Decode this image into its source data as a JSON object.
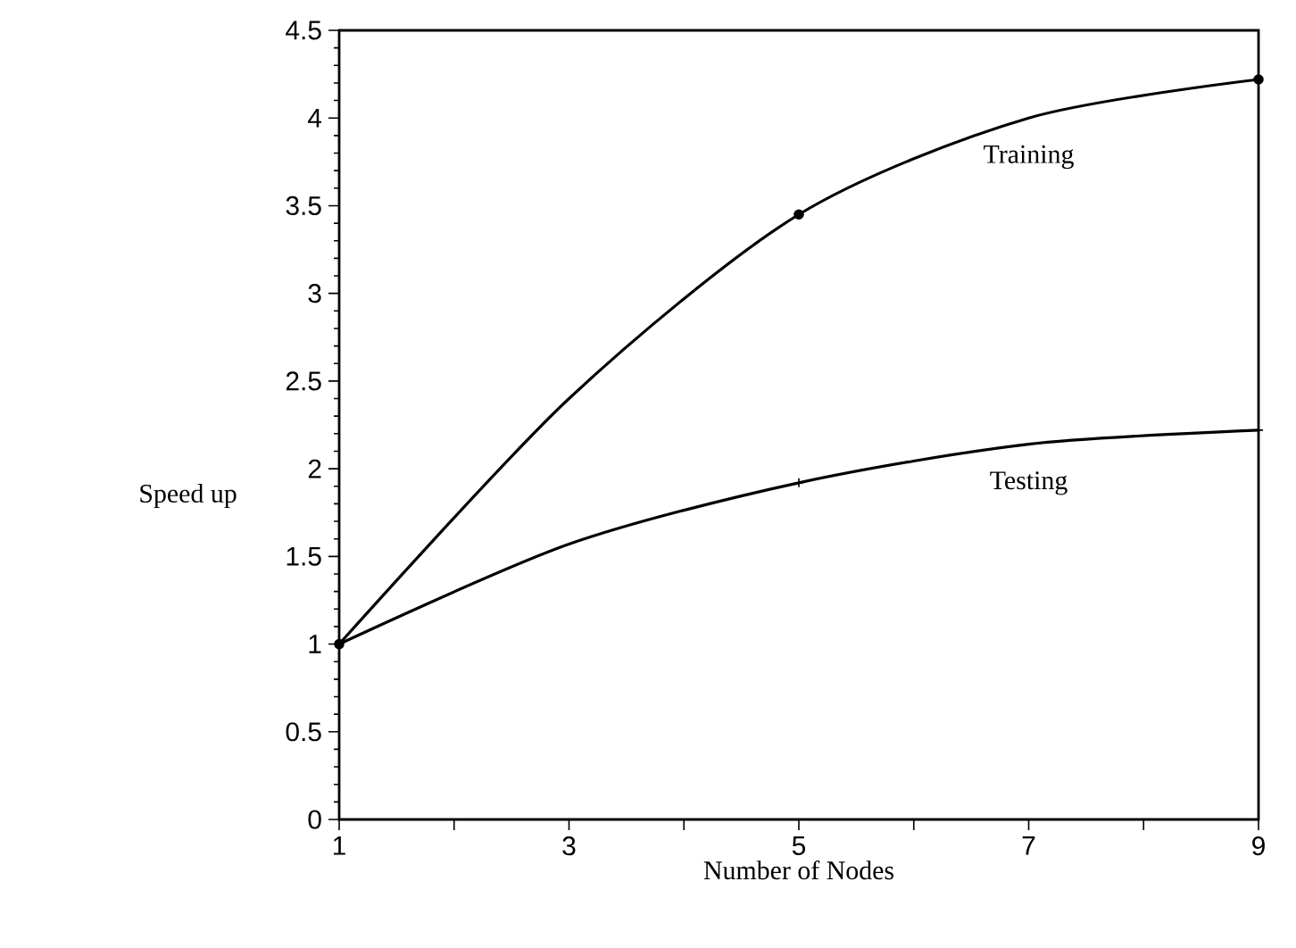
{
  "chart_data": {
    "type": "line",
    "xlabel": "Number of Nodes",
    "ylabel": "Speed up",
    "x": [
      1,
      3,
      5,
      7,
      9
    ],
    "series": [
      {
        "name": "Training",
        "color": "#000000",
        "values": [
          1,
          2.4,
          3.45,
          4.0,
          4.22
        ],
        "marker": "circle"
      },
      {
        "name": "Testing",
        "color": "#000000",
        "values": [
          1,
          1.57,
          1.92,
          2.14,
          2.22
        ],
        "marker": "cross"
      }
    ],
    "xlim": [
      1,
      9
    ],
    "xticks": [
      1,
      {
        "value": 2,
        "label": null
      },
      3,
      {
        "value": 4,
        "label": null
      },
      5,
      {
        "value": 6,
        "label": null
      },
      7,
      {
        "value": 8,
        "label": null
      },
      9
    ],
    "ylim": [
      0,
      4.5
    ],
    "yticks": [
      0,
      0.5,
      1,
      1.5,
      2,
      2.5,
      3,
      3.5,
      4,
      4.5
    ],
    "grid": false,
    "line_style": "solid"
  }
}
